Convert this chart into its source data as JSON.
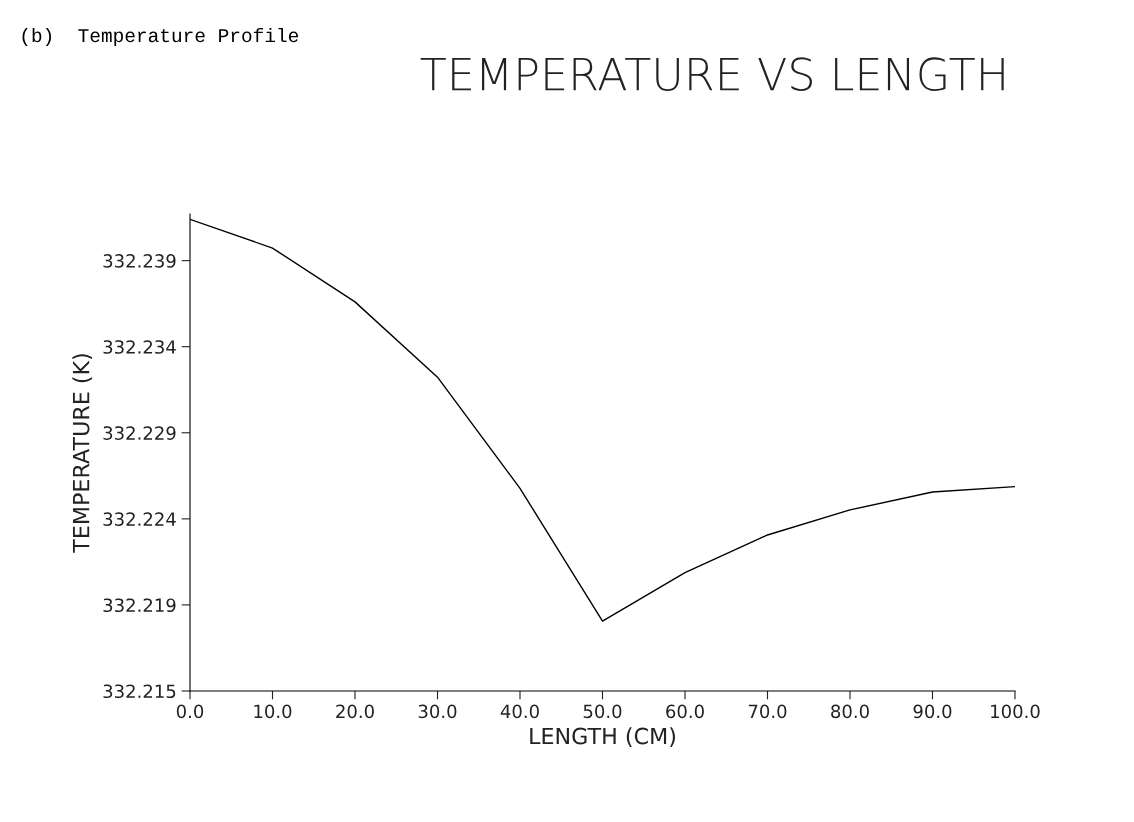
{
  "chart_data": {
    "type": "line",
    "title": "TEMPERATURE VS LENGTH",
    "xlabel": "LENGTH (CM)",
    "ylabel": "TEMPERATURE (K)",
    "annotations": [
      "(b)  Temperature Profile"
    ],
    "x": [
      0,
      10,
      20,
      30,
      40,
      50,
      60,
      70,
      80,
      90,
      100
    ],
    "series": [
      {
        "color": "#000000",
        "values": [
          332.2409,
          332.2393,
          332.2363,
          332.2321,
          332.2259,
          332.2185,
          332.2212,
          332.2233,
          332.2247,
          332.2257,
          332.226
        ]
      }
    ],
    "xlim": [
      0,
      100
    ],
    "xticks": [
      {
        "value": 0,
        "label": "0.0"
      },
      {
        "value": 10,
        "label": "10.0"
      },
      {
        "value": 20,
        "label": "20.0"
      },
      {
        "value": 30,
        "label": "30.0"
      },
      {
        "value": 40,
        "label": "40.0"
      },
      {
        "value": 50,
        "label": "50.0"
      },
      {
        "value": 60,
        "label": "60.0"
      },
      {
        "value": 70,
        "label": "70.0"
      },
      {
        "value": 80,
        "label": "80.0"
      },
      {
        "value": 90,
        "label": "90.0"
      },
      {
        "value": 100,
        "label": "100.0"
      }
    ],
    "ylim": [
      332.2146,
      332.2412
    ],
    "yticks": [
      {
        "value": 332.2146,
        "label": "332.215"
      },
      {
        "value": 332.2194,
        "label": "332.219"
      },
      {
        "value": 332.2242,
        "label": "332.224"
      },
      {
        "value": 332.229,
        "label": "332.229"
      },
      {
        "value": 332.2338,
        "label": "332.234"
      },
      {
        "value": 332.2386,
        "label": "332.239"
      }
    ],
    "grid": false,
    "marker": "none",
    "line_style": "solid"
  }
}
